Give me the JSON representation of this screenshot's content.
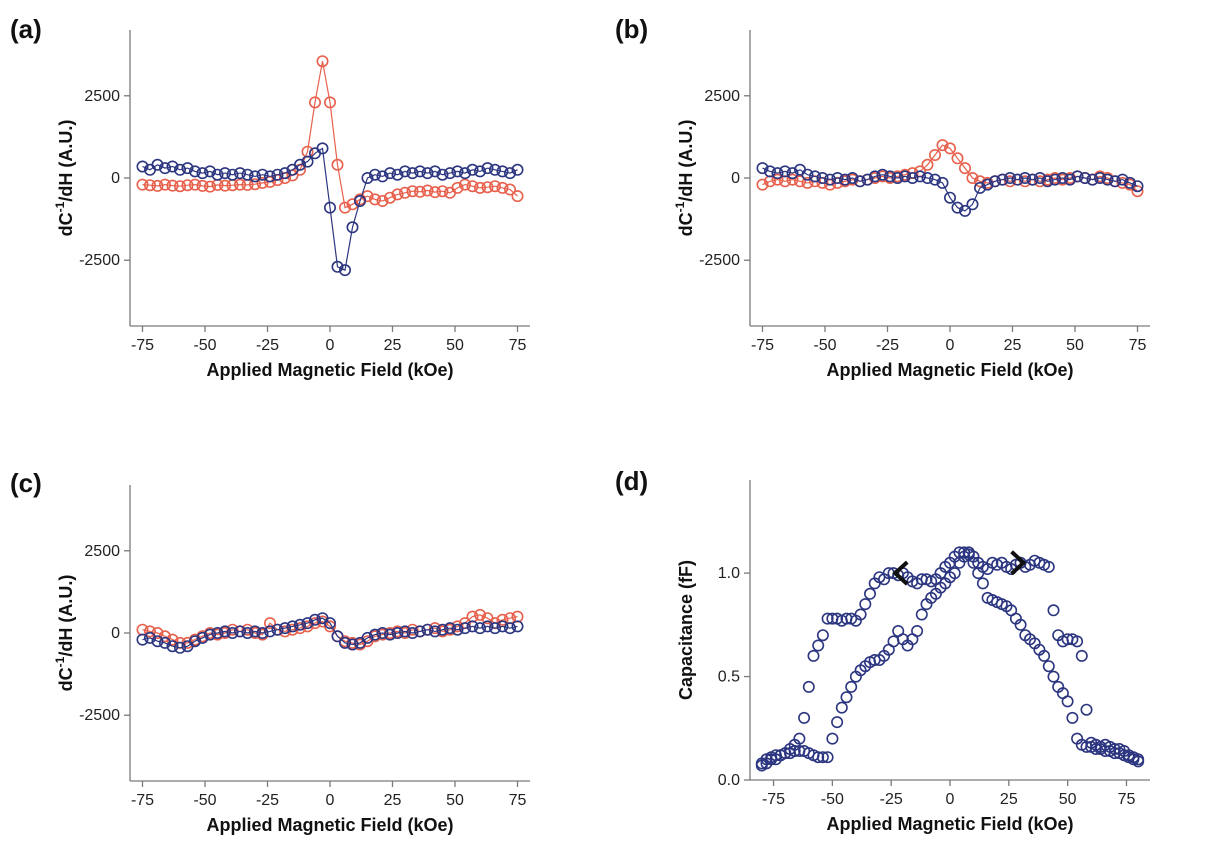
{
  "figure": {
    "colors": {
      "red": "#e8604c",
      "blue": "#2c3680",
      "axis": "#7a7a7a"
    }
  },
  "chart_data": [
    {
      "panel": "(a)",
      "type": "scatter",
      "xlabel": "Applied Magnetic Field (kOe)",
      "ylabel": "dC-1/dH (A.U.)",
      "ylabel_main": "dC",
      "ylabel_sup": "-1",
      "ylabel_rest": "/dH (A.U.)",
      "xlim": [
        -80,
        80
      ],
      "ylim": [
        -4500,
        4500
      ],
      "xticks": [
        -75,
        -50,
        -25,
        0,
        25,
        50,
        75
      ],
      "yticks": [
        -2500,
        0,
        2500
      ],
      "grid": false,
      "series": [
        {
          "color": "red",
          "line": true,
          "x": [
            -75,
            -72,
            -69,
            -66,
            -63,
            -60,
            -57,
            -54,
            -51,
            -48,
            -45,
            -42,
            -39,
            -36,
            -33,
            -30,
            -27,
            -24,
            -21,
            -18,
            -15,
            -12,
            -9,
            -6,
            -3,
            0,
            3,
            6,
            9,
            12,
            15,
            18,
            21,
            24,
            27,
            30,
            33,
            36,
            39,
            42,
            45,
            48,
            51,
            54,
            57,
            60,
            63,
            66,
            69,
            72,
            75
          ],
          "y": [
            -200,
            -220,
            -240,
            -200,
            -230,
            -250,
            -220,
            -200,
            -240,
            -260,
            -210,
            -230,
            -220,
            -200,
            -210,
            -190,
            -150,
            -120,
            -60,
            0,
            80,
            250,
            800,
            2300,
            3550,
            2300,
            400,
            -900,
            -800,
            -650,
            -550,
            -650,
            -700,
            -600,
            -500,
            -450,
            -400,
            -420,
            -380,
            -430,
            -400,
            -450,
            -300,
            -200,
            -250,
            -300,
            -280,
            -250,
            -300,
            -350,
            -550
          ]
        },
        {
          "color": "blue",
          "line": true,
          "x": [
            -75,
            -72,
            -69,
            -66,
            -63,
            -60,
            -57,
            -54,
            -51,
            -48,
            -45,
            -42,
            -39,
            -36,
            -33,
            -30,
            -27,
            -24,
            -21,
            -18,
            -15,
            -12,
            -9,
            -6,
            -3,
            0,
            3,
            6,
            9,
            12,
            15,
            18,
            21,
            24,
            27,
            30,
            33,
            36,
            39,
            42,
            45,
            48,
            51,
            54,
            57,
            60,
            63,
            66,
            69,
            72,
            75
          ],
          "y": [
            350,
            250,
            400,
            300,
            350,
            250,
            300,
            200,
            150,
            200,
            100,
            150,
            100,
            150,
            100,
            50,
            100,
            50,
            100,
            150,
            250,
            400,
            500,
            750,
            900,
            -900,
            -2700,
            -2800,
            -1500,
            -700,
            0,
            100,
            50,
            150,
            100,
            200,
            150,
            200,
            150,
            200,
            100,
            150,
            200,
            150,
            250,
            200,
            300,
            250,
            200,
            150,
            250
          ]
        }
      ]
    },
    {
      "panel": "(b)",
      "type": "scatter",
      "xlabel": "Applied Magnetic Field (kOe)",
      "ylabel": "dC-1/dH (A.U.)",
      "ylabel_main": "dC",
      "ylabel_sup": "-1",
      "ylabel_rest": "/dH (A.U.)",
      "xlim": [
        -80,
        80
      ],
      "ylim": [
        -4500,
        4500
      ],
      "xticks": [
        -75,
        -50,
        -25,
        0,
        25,
        50,
        75
      ],
      "yticks": [
        -2500,
        0,
        2500
      ],
      "grid": false,
      "series": [
        {
          "color": "red",
          "line": true,
          "x": [
            -75,
            -72,
            -69,
            -66,
            -63,
            -60,
            -57,
            -54,
            -51,
            -48,
            -45,
            -42,
            -39,
            -36,
            -33,
            -30,
            -27,
            -24,
            -21,
            -18,
            -15,
            -12,
            -9,
            -6,
            -3,
            0,
            3,
            6,
            9,
            12,
            15,
            18,
            21,
            24,
            27,
            30,
            33,
            36,
            39,
            42,
            45,
            48,
            51,
            54,
            57,
            60,
            63,
            66,
            69,
            72,
            75
          ],
          "y": [
            -200,
            -100,
            -50,
            -100,
            -50,
            -100,
            -150,
            -100,
            -150,
            -200,
            -150,
            -100,
            -50,
            -100,
            -50,
            0,
            50,
            0,
            50,
            100,
            150,
            200,
            400,
            700,
            1000,
            900,
            600,
            300,
            0,
            -100,
            -150,
            -100,
            -50,
            -100,
            -50,
            -100,
            -50,
            -100,
            -50,
            0,
            -50,
            0,
            50,
            0,
            -50,
            50,
            0,
            -100,
            -150,
            -200,
            -400
          ]
        },
        {
          "color": "blue",
          "line": true,
          "x": [
            -75,
            -72,
            -69,
            -66,
            -63,
            -60,
            -57,
            -54,
            -51,
            -48,
            -45,
            -42,
            -39,
            -36,
            -33,
            -30,
            -27,
            -24,
            -21,
            -18,
            -15,
            -12,
            -9,
            -6,
            -3,
            0,
            3,
            6,
            9,
            12,
            15,
            18,
            21,
            24,
            27,
            30,
            33,
            36,
            39,
            42,
            45,
            48,
            51,
            54,
            57,
            60,
            63,
            66,
            69,
            72,
            75
          ],
          "y": [
            300,
            200,
            150,
            200,
            150,
            250,
            100,
            50,
            0,
            -50,
            0,
            -50,
            0,
            -100,
            -50,
            50,
            100,
            50,
            0,
            50,
            0,
            50,
            0,
            -50,
            -150,
            -600,
            -900,
            -1000,
            -800,
            -300,
            -200,
            -100,
            -50,
            0,
            -50,
            0,
            -50,
            0,
            -100,
            -50,
            0,
            -50,
            50,
            0,
            -50,
            0,
            -50,
            -100,
            -50,
            -150,
            -250
          ]
        }
      ]
    },
    {
      "panel": "(c)",
      "type": "scatter",
      "xlabel": "Applied Magnetic Field (kOe)",
      "ylabel": "dC-1/dH (A.U.)",
      "ylabel_main": "dC",
      "ylabel_sup": "-1",
      "ylabel_rest": "/dH (A.U.)",
      "xlim": [
        -80,
        80
      ],
      "ylim": [
        -4500,
        4500
      ],
      "xticks": [
        -75,
        -50,
        -25,
        0,
        25,
        50,
        75
      ],
      "yticks": [
        -2500,
        0,
        2500
      ],
      "grid": false,
      "series": [
        {
          "color": "red",
          "line": true,
          "x": [
            -75,
            -72,
            -69,
            -66,
            -63,
            -60,
            -57,
            -54,
            -51,
            -48,
            -45,
            -42,
            -39,
            -36,
            -33,
            -30,
            -27,
            -24,
            -21,
            -18,
            -15,
            -12,
            -9,
            -6,
            -3,
            0,
            3,
            6,
            9,
            12,
            15,
            18,
            21,
            24,
            27,
            30,
            33,
            36,
            39,
            42,
            45,
            48,
            51,
            54,
            57,
            60,
            63,
            66,
            69,
            72,
            75
          ],
          "y": [
            100,
            50,
            0,
            -100,
            -200,
            -300,
            -300,
            -200,
            -100,
            0,
            -50,
            0,
            100,
            50,
            100,
            0,
            -50,
            300,
            100,
            50,
            100,
            150,
            200,
            300,
            350,
            200,
            -100,
            -250,
            -300,
            -350,
            -250,
            -100,
            -50,
            0,
            50,
            0,
            100,
            50,
            100,
            150,
            50,
            100,
            200,
            300,
            500,
            550,
            450,
            300,
            400,
            450,
            500
          ]
        },
        {
          "color": "blue",
          "line": true,
          "x": [
            -75,
            -72,
            -69,
            -66,
            -63,
            -60,
            -57,
            -54,
            -51,
            -48,
            -45,
            -42,
            -39,
            -36,
            -33,
            -30,
            -27,
            -24,
            -21,
            -18,
            -15,
            -12,
            -9,
            -6,
            -3,
            0,
            3,
            6,
            9,
            12,
            15,
            18,
            21,
            24,
            27,
            30,
            33,
            36,
            39,
            42,
            45,
            48,
            51,
            54,
            57,
            60,
            63,
            66,
            69,
            72,
            75
          ],
          "y": [
            -200,
            -150,
            -250,
            -300,
            -400,
            -450,
            -400,
            -250,
            -150,
            -50,
            0,
            50,
            0,
            50,
            0,
            50,
            0,
            50,
            100,
            150,
            200,
            250,
            300,
            400,
            450,
            300,
            -100,
            -300,
            -350,
            -300,
            -150,
            -50,
            0,
            -50,
            0,
            50,
            0,
            50,
            100,
            50,
            100,
            150,
            100,
            150,
            200,
            150,
            200,
            150,
            200,
            150,
            200
          ]
        }
      ]
    },
    {
      "panel": "(d)",
      "type": "scatter",
      "xlabel": "Applied Magnetic Field (kOe)",
      "ylabel": "Capacitance (fF)",
      "xlim": [
        -85,
        85
      ],
      "ylim": [
        0.0,
        1.45
      ],
      "xticks": [
        -75,
        -50,
        -25,
        0,
        25,
        50,
        75
      ],
      "yticks": [
        0.0,
        0.5,
        1.0
      ],
      "ytick_labels": [
        "0.0",
        "0.5",
        "1.0"
      ],
      "grid": false,
      "annotations": [
        {
          "type": "arrow",
          "direction": "left",
          "x": -22,
          "y": 1.0
        },
        {
          "type": "arrow",
          "direction": "right",
          "x": 30,
          "y": 1.05
        }
      ],
      "series": [
        {
          "color": "blue",
          "line": false,
          "x": [
            -80,
            -78,
            -76,
            -74,
            -72,
            -70,
            -68,
            -66,
            -64,
            -62,
            -60,
            -58,
            -56,
            -54,
            -52,
            -50,
            -48,
            -46,
            -44,
            -42,
            -40,
            -38,
            -36,
            -34,
            -32,
            -30,
            -28,
            -26,
            -24,
            -22,
            -20,
            -18,
            -16,
            -14,
            -12,
            -10,
            -8,
            -6,
            -4,
            -2,
            0,
            2,
            4,
            6,
            8,
            10,
            12,
            14,
            16,
            18,
            20,
            22,
            24,
            26,
            28,
            30,
            32,
            34,
            36,
            38,
            40,
            42,
            44,
            46,
            48,
            50,
            52,
            54,
            56,
            58,
            60,
            62,
            64,
            66,
            68,
            70,
            72,
            74,
            76,
            78,
            80
          ],
          "y": [
            0.07,
            0.08,
            0.1,
            0.1,
            0.12,
            0.13,
            0.15,
            0.17,
            0.2,
            0.3,
            0.45,
            0.6,
            0.65,
            0.7,
            0.78,
            0.78,
            0.78,
            0.77,
            0.78,
            0.78,
            0.77,
            0.8,
            0.85,
            0.9,
            0.95,
            0.98,
            0.97,
            1.0,
            1.0,
            0.99,
            1.0,
            0.98,
            0.96,
            0.95,
            0.97,
            0.97,
            0.96,
            0.97,
            1.0,
            1.03,
            1.05,
            1.08,
            1.1,
            1.1,
            1.09,
            1.08,
            1.05,
            1.03,
            1.02,
            1.05,
            1.04,
            1.05,
            1.03,
            1.02,
            1.04,
            1.05,
            1.03,
            1.04,
            1.06,
            1.05,
            1.04,
            1.03,
            0.82,
            0.7,
            0.67,
            0.68,
            0.68,
            0.67,
            0.6,
            0.34,
            0.18,
            0.17,
            0.16,
            0.17,
            0.16,
            0.15,
            0.15,
            0.14,
            0.12,
            0.11,
            0.1
          ]
        },
        {
          "color": "blue",
          "line": false,
          "x": [
            -80,
            -78,
            -76,
            -74,
            -72,
            -70,
            -68,
            -66,
            -64,
            -62,
            -60,
            -58,
            -56,
            -54,
            -52,
            -50,
            -48,
            -46,
            -44,
            -42,
            -40,
            -38,
            -36,
            -34,
            -32,
            -30,
            -28,
            -26,
            -24,
            -22,
            -20,
            -18,
            -16,
            -14,
            -12,
            -10,
            -8,
            -6,
            -4,
            -2,
            0,
            2,
            4,
            6,
            8,
            10,
            12,
            14,
            16,
            18,
            20,
            22,
            24,
            26,
            28,
            30,
            32,
            34,
            36,
            38,
            40,
            42,
            44,
            46,
            48,
            50,
            52,
            54,
            56,
            58,
            60,
            62,
            64,
            66,
            68,
            70,
            72,
            74,
            76,
            78,
            80
          ],
          "y": [
            0.08,
            0.1,
            0.11,
            0.12,
            0.12,
            0.13,
            0.13,
            0.14,
            0.14,
            0.14,
            0.13,
            0.12,
            0.11,
            0.11,
            0.11,
            0.2,
            0.28,
            0.35,
            0.4,
            0.45,
            0.5,
            0.53,
            0.55,
            0.57,
            0.58,
            0.58,
            0.6,
            0.63,
            0.67,
            0.72,
            0.68,
            0.65,
            0.68,
            0.72,
            0.8,
            0.85,
            0.88,
            0.9,
            0.93,
            0.95,
            0.98,
            1.0,
            1.05,
            1.08,
            1.1,
            1.05,
            1.0,
            0.95,
            0.88,
            0.87,
            0.86,
            0.85,
            0.84,
            0.82,
            0.78,
            0.75,
            0.7,
            0.68,
            0.66,
            0.63,
            0.6,
            0.55,
            0.5,
            0.45,
            0.42,
            0.38,
            0.3,
            0.2,
            0.17,
            0.16,
            0.16,
            0.15,
            0.15,
            0.14,
            0.14,
            0.13,
            0.13,
            0.12,
            0.11,
            0.1,
            0.09
          ]
        }
      ]
    }
  ]
}
